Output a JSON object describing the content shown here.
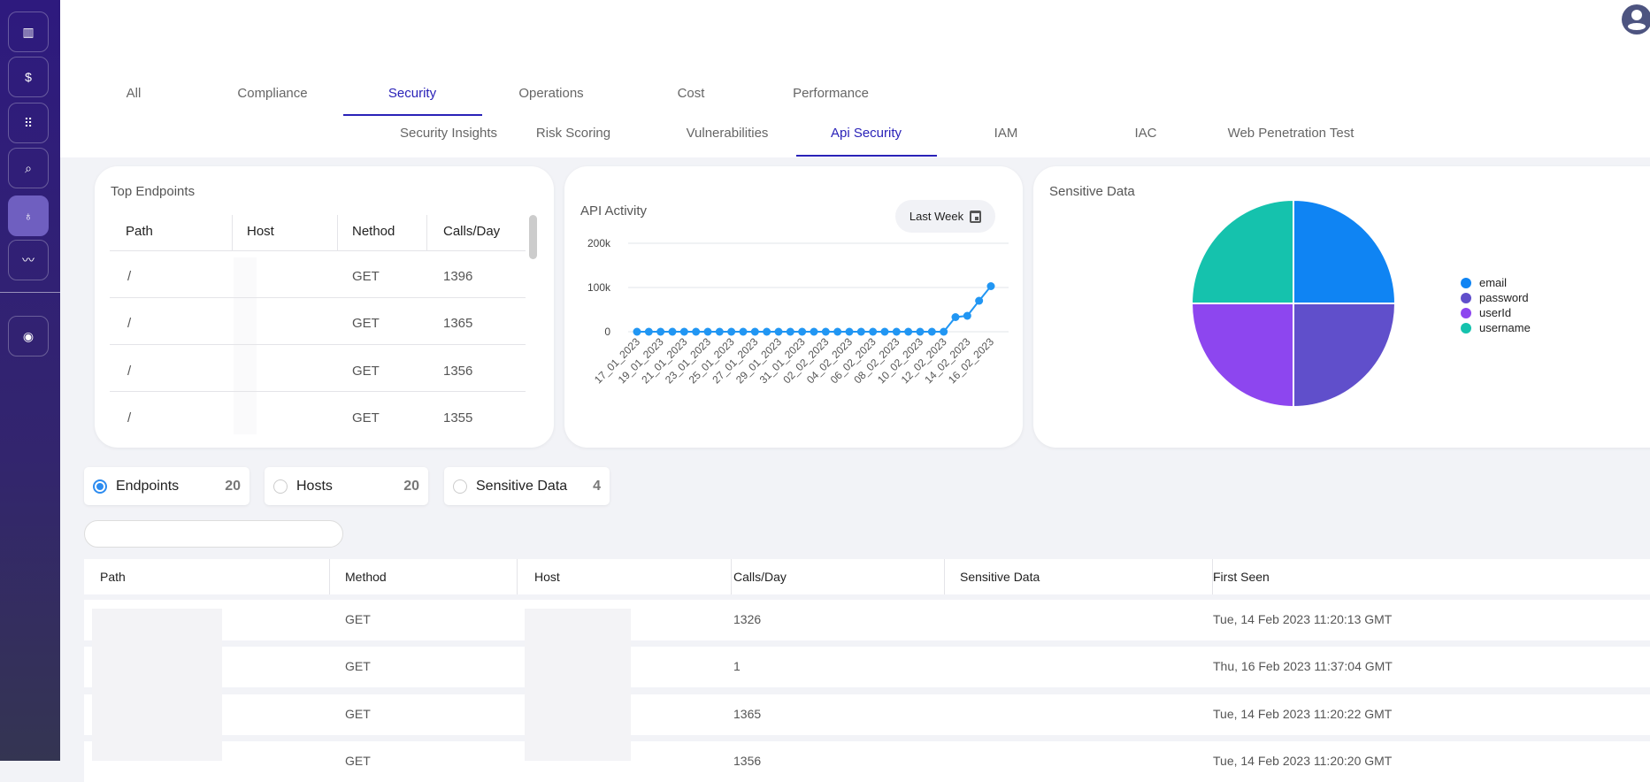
{
  "sidebar": {
    "items": [
      {
        "icon": "bar-chart-icon",
        "glyph": "▥"
      },
      {
        "icon": "dollar-icon",
        "glyph": "$"
      },
      {
        "icon": "grid-icon",
        "glyph": "⠿"
      },
      {
        "icon": "search-icon",
        "glyph": "⌕"
      },
      {
        "icon": "lightbulb-icon",
        "glyph": "♁",
        "active": true
      },
      {
        "icon": "trend-icon",
        "glyph": "〰"
      },
      {
        "icon": "user-circle-icon",
        "glyph": "◉"
      }
    ]
  },
  "main_tabs": [
    {
      "label": "All"
    },
    {
      "label": "Compliance"
    },
    {
      "label": "Security",
      "active": true
    },
    {
      "label": "Operations"
    },
    {
      "label": "Cost"
    },
    {
      "label": "Performance"
    }
  ],
  "sub_tabs": [
    {
      "label": "Security Insights"
    },
    {
      "label": "Risk Scoring"
    },
    {
      "label": "Vulnerabilities"
    },
    {
      "label": "Api Security",
      "active": true
    },
    {
      "label": "IAM"
    },
    {
      "label": "IAC"
    },
    {
      "label": "Web Penetration Test"
    }
  ],
  "top_endpoints": {
    "title": "Top Endpoints",
    "columns": [
      "Path",
      "Host",
      "Nethod",
      "Calls/Day"
    ],
    "rows": [
      {
        "path": "/",
        "method": "GET",
        "calls": "1396"
      },
      {
        "path": "/",
        "method": "GET",
        "calls": "1365"
      },
      {
        "path": "/",
        "method": "GET",
        "calls": "1356"
      },
      {
        "path": "/",
        "method": "GET",
        "calls": "1355"
      }
    ]
  },
  "api_activity": {
    "title": "API Activity",
    "range_button": "Last Week"
  },
  "sensitive_data_card": {
    "title": "Sensitive Data"
  },
  "chart_data": [
    {
      "type": "line",
      "title": "API Activity",
      "x": [
        "17_01_2023",
        "18_01_2023",
        "19_01_2023",
        "20_01_2023",
        "21_01_2023",
        "22_01_2023",
        "23_01_2023",
        "24_01_2023",
        "25_01_2023",
        "26_01_2023",
        "27_01_2023",
        "28_01_2023",
        "29_01_2023",
        "30_01_2023",
        "31_01_2023",
        "01_02_2023",
        "02_02_2023",
        "03_02_2023",
        "04_02_2023",
        "05_02_2023",
        "06_02_2023",
        "07_02_2023",
        "08_02_2023",
        "09_02_2023",
        "10_02_2023",
        "11_02_2023",
        "12_02_2023",
        "13_02_2023",
        "14_02_2023",
        "15_02_2023",
        "16_02_2023"
      ],
      "x_tick_labels": [
        "17_01_2023",
        "19_01_2023",
        "21_01_2023",
        "23_01_2023",
        "25_01_2023",
        "27_01_2023",
        "29_01_2023",
        "31_01_2023",
        "02_02_2023",
        "04_02_2023",
        "06_02_2023",
        "08_02_2023",
        "10_02_2023",
        "12_02_2023",
        "14_02_2023",
        "16_02_2023"
      ],
      "values": [
        0,
        0,
        0,
        0,
        0,
        0,
        0,
        0,
        0,
        0,
        0,
        0,
        0,
        0,
        0,
        0,
        0,
        0,
        0,
        0,
        0,
        0,
        0,
        0,
        0,
        0,
        0,
        33000,
        36000,
        70000,
        103000
      ],
      "y_ticks": [
        "0",
        "100k",
        "200k"
      ],
      "ylim": [
        0,
        200000
      ],
      "grid": true,
      "color": "#2196f3"
    },
    {
      "type": "pie",
      "title": "Sensitive Data",
      "legend": "right",
      "slices": [
        {
          "label": "email",
          "value": 1,
          "color": "#0f84f3"
        },
        {
          "label": "password",
          "value": 1,
          "color": "#604fcb"
        },
        {
          "label": "userId",
          "value": 1,
          "color": "#8d46ef"
        },
        {
          "label": "username",
          "value": 1,
          "color": "#15c2ad"
        }
      ]
    }
  ],
  "filters": [
    {
      "label": "Endpoints",
      "count": "20",
      "selected": true
    },
    {
      "label": "Hosts",
      "count": "20"
    },
    {
      "label": "Sensitive Data",
      "count": "4"
    }
  ],
  "search": {
    "value": "",
    "placeholder": ""
  },
  "table": {
    "columns": [
      "Path",
      "Method",
      "Host",
      "Calls/Day",
      "Sensitive Data",
      "First Seen"
    ],
    "rows": [
      {
        "method": "GET",
        "calls": "1326",
        "sensitive": "",
        "first_seen": "Tue, 14 Feb 2023 11:20:13 GMT"
      },
      {
        "method": "GET",
        "calls": "1",
        "sensitive": "",
        "first_seen": "Thu, 16 Feb 2023 11:37:04 GMT"
      },
      {
        "method": "GET",
        "calls": "1365",
        "sensitive": "",
        "first_seen": "Tue, 14 Feb 2023 11:20:22 GMT"
      },
      {
        "method": "GET",
        "calls": "1356",
        "sensitive": "",
        "first_seen": "Tue, 14 Feb 2023 11:20:20 GMT"
      }
    ]
  }
}
